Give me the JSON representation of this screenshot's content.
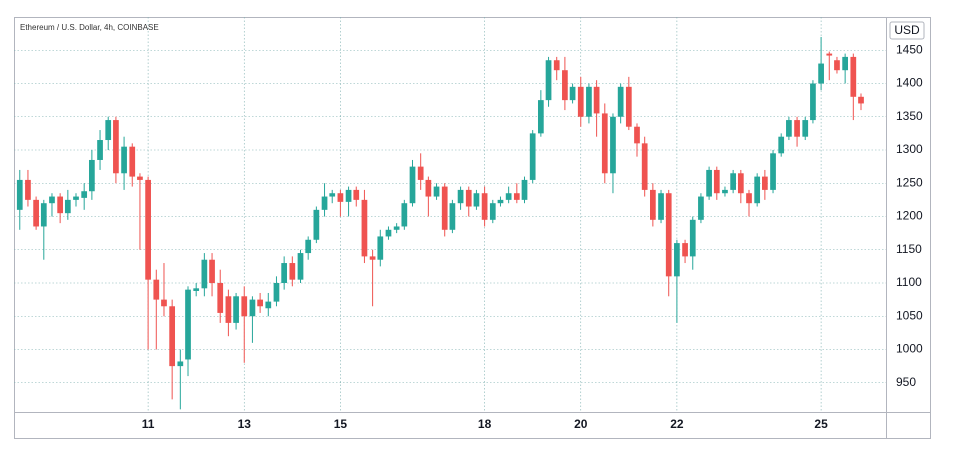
{
  "chart_data": {
    "type": "candlestick",
    "title": "Ethereum / U.S. Dollar, 4h, COINBASE",
    "y_axis_label": "USD",
    "up_color": "#26a69a",
    "down_color": "#ef5350",
    "grid": true,
    "xlim": [
      8.21,
      26.35
    ],
    "xticks": [
      11,
      13,
      15,
      18,
      20,
      22,
      25
    ],
    "ylim": [
      906,
      1500
    ],
    "yticks": [
      950,
      1000,
      1050,
      1100,
      1150,
      1200,
      1250,
      1300,
      1350,
      1400,
      1450
    ],
    "x": [
      8.33,
      8.5,
      8.67,
      8.83,
      9,
      9.17,
      9.33,
      9.5,
      9.67,
      9.83,
      10,
      10.17,
      10.33,
      10.5,
      10.67,
      10.83,
      11,
      11.17,
      11.33,
      11.5,
      11.67,
      11.83,
      12,
      12.17,
      12.33,
      12.5,
      12.67,
      12.83,
      13,
      13.17,
      13.33,
      13.5,
      13.67,
      13.83,
      14,
      14.17,
      14.33,
      14.5,
      14.67,
      14.83,
      15,
      15.17,
      15.33,
      15.5,
      15.67,
      15.83,
      16,
      16.17,
      16.33,
      16.5,
      16.67,
      16.83,
      17,
      17.17,
      17.33,
      17.5,
      17.67,
      17.83,
      18,
      18.17,
      18.33,
      18.5,
      18.67,
      18.83,
      19,
      19.17,
      19.33,
      19.5,
      19.67,
      19.83,
      20,
      20.17,
      20.33,
      20.5,
      20.67,
      20.83,
      21,
      21.17,
      21.33,
      21.5,
      21.67,
      21.83,
      22,
      22.17,
      22.33,
      22.5,
      22.67,
      22.83,
      23,
      23.17,
      23.33,
      23.5,
      23.67,
      23.83,
      24,
      24.17,
      24.33,
      24.5,
      24.67,
      24.83,
      25,
      25.17,
      25.33,
      25.5,
      25.67,
      25.83
    ],
    "open": [
      1210,
      1255,
      1225,
      1185,
      1220,
      1230,
      1205,
      1225,
      1228,
      1238,
      1285,
      1315,
      1345,
      1265,
      1305,
      1260,
      1255,
      1105,
      1075,
      1065,
      975,
      985,
      1088,
      1092,
      1135,
      1100,
      1080,
      1040,
      1080,
      1050,
      1075,
      1062,
      1072,
      1100,
      1130,
      1105,
      1145,
      1165,
      1210,
      1230,
      1235,
      1222,
      1240,
      1225,
      1140,
      1135,
      1170,
      1180,
      1185,
      1220,
      1275,
      1255,
      1230,
      1245,
      1180,
      1220,
      1240,
      1215,
      1235,
      1195,
      1220,
      1225,
      1235,
      1225,
      1255,
      1325,
      1375,
      1435,
      1420,
      1375,
      1395,
      1350,
      1395,
      1355,
      1265,
      1350,
      1395,
      1335,
      1310,
      1240,
      1195,
      1235,
      1110,
      1160,
      1140,
      1195,
      1230,
      1270,
      1235,
      1240,
      1265,
      1235,
      1220,
      1260,
      1240,
      1295,
      1320,
      1345,
      1320,
      1345,
      1400,
      1445,
      1435,
      1420,
      1440,
      1380
    ],
    "high": [
      1270,
      1270,
      1230,
      1225,
      1235,
      1235,
      1240,
      1235,
      1250,
      1300,
      1330,
      1350,
      1350,
      1320,
      1310,
      1265,
      1260,
      1120,
      1130,
      1075,
      1000,
      1095,
      1100,
      1145,
      1145,
      1120,
      1090,
      1085,
      1095,
      1080,
      1085,
      1085,
      1110,
      1140,
      1140,
      1150,
      1170,
      1215,
      1250,
      1240,
      1240,
      1245,
      1245,
      1240,
      1150,
      1180,
      1185,
      1190,
      1225,
      1285,
      1295,
      1260,
      1250,
      1250,
      1225,
      1245,
      1245,
      1240,
      1245,
      1225,
      1230,
      1245,
      1250,
      1260,
      1330,
      1390,
      1440,
      1440,
      1440,
      1400,
      1410,
      1400,
      1405,
      1370,
      1355,
      1400,
      1410,
      1340,
      1320,
      1250,
      1240,
      1240,
      1165,
      1165,
      1200,
      1235,
      1275,
      1275,
      1245,
      1270,
      1270,
      1240,
      1265,
      1270,
      1300,
      1325,
      1350,
      1350,
      1350,
      1405,
      1470,
      1448,
      1440,
      1445,
      1445,
      1385
    ],
    "low": [
      1180,
      1215,
      1180,
      1135,
      1200,
      1190,
      1195,
      1215,
      1210,
      1225,
      1270,
      1300,
      1250,
      1240,
      1245,
      1150,
      1000,
      1000,
      1050,
      925,
      910,
      960,
      1080,
      1080,
      1080,
      1040,
      1020,
      1030,
      980,
      1010,
      1055,
      1050,
      1065,
      1090,
      1095,
      1100,
      1135,
      1160,
      1200,
      1220,
      1200,
      1200,
      1215,
      1130,
      1065,
      1125,
      1165,
      1175,
      1180,
      1215,
      1240,
      1200,
      1225,
      1170,
      1175,
      1210,
      1200,
      1210,
      1185,
      1190,
      1215,
      1220,
      1220,
      1220,
      1250,
      1320,
      1365,
      1405,
      1360,
      1370,
      1335,
      1340,
      1320,
      1250,
      1235,
      1340,
      1330,
      1290,
      1230,
      1185,
      1190,
      1080,
      1040,
      1130,
      1120,
      1190,
      1225,
      1225,
      1230,
      1235,
      1220,
      1200,
      1215,
      1225,
      1235,
      1290,
      1315,
      1305,
      1315,
      1340,
      1390,
      1405,
      1415,
      1400,
      1345,
      1360
    ],
    "close": [
      1255,
      1225,
      1185,
      1220,
      1230,
      1205,
      1225,
      1230,
      1238,
      1285,
      1315,
      1345,
      1265,
      1305,
      1260,
      1255,
      1105,
      1075,
      1065,
      975,
      982,
      1090,
      1092,
      1135,
      1100,
      1055,
      1040,
      1080,
      1050,
      1075,
      1065,
      1072,
      1100,
      1130,
      1105,
      1145,
      1165,
      1210,
      1230,
      1235,
      1222,
      1240,
      1225,
      1140,
      1135,
      1170,
      1180,
      1185,
      1220,
      1275,
      1255,
      1230,
      1245,
      1180,
      1220,
      1240,
      1215,
      1235,
      1195,
      1220,
      1225,
      1235,
      1225,
      1255,
      1325,
      1375,
      1435,
      1420,
      1375,
      1395,
      1350,
      1395,
      1355,
      1265,
      1350,
      1395,
      1335,
      1310,
      1240,
      1195,
      1235,
      1110,
      1160,
      1140,
      1195,
      1230,
      1270,
      1235,
      1240,
      1265,
      1235,
      1220,
      1260,
      1240,
      1295,
      1320,
      1345,
      1320,
      1345,
      1400,
      1430,
      1442,
      1420,
      1440,
      1380,
      1370
    ]
  }
}
